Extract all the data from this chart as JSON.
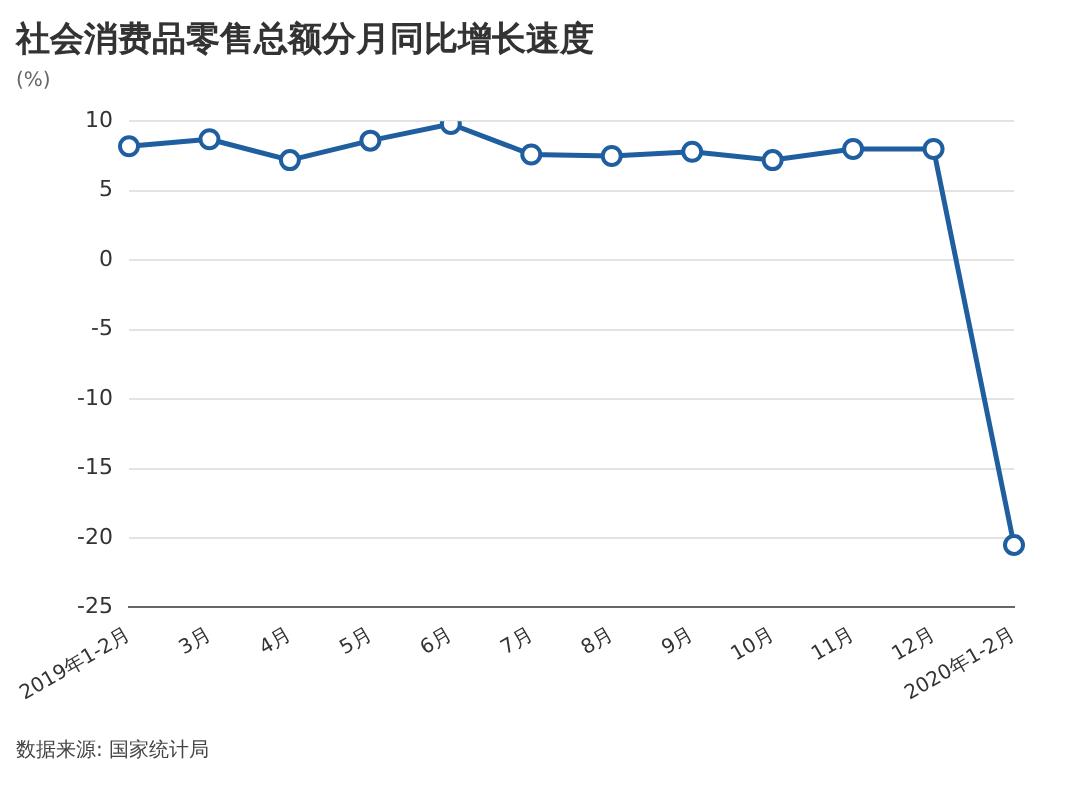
{
  "chart_data": {
    "type": "line",
    "title": "社会消费品零售总额分月同比增长速度",
    "ylabel": "(%)",
    "categories": [
      "2019年1-2月",
      "3月",
      "4月",
      "5月",
      "6月",
      "7月",
      "8月",
      "9月",
      "10月",
      "11月",
      "12月",
      "2020年1-2月"
    ],
    "series": [
      {
        "color": "#1f5fa0",
        "values": [
          8.2,
          8.7,
          7.2,
          8.6,
          9.8,
          7.6,
          7.5,
          7.8,
          7.2,
          8.0,
          8.0,
          -20.5
        ]
      }
    ],
    "ylim": [
      -25,
      10
    ],
    "yticks": [
      -25,
      -20,
      -15,
      -10,
      -5,
      0,
      5,
      10
    ],
    "grid": "y",
    "legend": false,
    "marker": "circle",
    "line_style": "solid",
    "annotations": [
      "数据来源: 国家统计局"
    ]
  }
}
